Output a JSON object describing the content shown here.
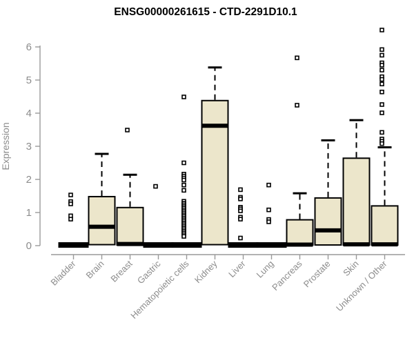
{
  "colors": {
    "background": "#ffffff",
    "box_fill": "#ece6cb",
    "box_stroke": "#000000",
    "median": "#000000",
    "whisker": "#000000",
    "outlier_stroke": "#000000",
    "outlier_fill": "#ffffff",
    "axis": "#999999",
    "tick_label": "#8c8c8c",
    "title": "#000000"
  },
  "chart_data": {
    "type": "boxplot",
    "title": "ENSG00000261615 - CTD-2291D10.1",
    "xlabel": "",
    "ylabel": "Expression",
    "ylim": [
      0,
      6.6
    ],
    "yticks": [
      0,
      1,
      2,
      3,
      4,
      5,
      6
    ],
    "grid": false,
    "legend": "none",
    "categories": [
      "Bladder",
      "Brain",
      "Breast",
      "Gastric",
      "Hematopoietic cells",
      "Kidney",
      "Liver",
      "Lung",
      "Pancreas",
      "Prostate",
      "Skin",
      "Unknown / Other"
    ],
    "series": [
      {
        "name": "Bladder",
        "whisker_low": 0,
        "q1": 0,
        "median": 0.02,
        "q3": 0.04,
        "whisker_high": 0.04,
        "outliers": [
          1.53,
          1.33,
          1.26,
          0.9,
          0.8
        ]
      },
      {
        "name": "Brain",
        "whisker_low": 0.03,
        "q1": 0.03,
        "median": 0.57,
        "q3": 1.48,
        "whisker_high": 2.77,
        "outliers": []
      },
      {
        "name": "Breast",
        "whisker_low": 0.02,
        "q1": 0.02,
        "median": 0.05,
        "q3": 1.15,
        "whisker_high": 2.14,
        "outliers": [
          3.49
        ]
      },
      {
        "name": "Gastric",
        "whisker_low": 0,
        "q1": 0,
        "median": 0.02,
        "q3": 0.04,
        "whisker_high": 0.04,
        "outliers": [
          1.79
        ]
      },
      {
        "name": "Hematopoietic cells",
        "whisker_low": 0,
        "q1": 0,
        "median": 0.02,
        "q3": 0.04,
        "whisker_high": 0.04,
        "outliers": [
          4.49,
          2.5,
          2.16,
          2.1,
          2.04,
          1.98,
          1.83,
          1.67,
          1.34,
          1.28,
          1.23,
          1.18,
          1.13,
          1.08,
          1.03,
          0.98,
          0.93,
          0.88,
          0.83,
          0.78,
          0.73,
          0.68,
          0.63,
          0.58,
          0.53,
          0.48,
          0.43,
          0.38,
          0.33,
          0.28
        ]
      },
      {
        "name": "Kidney",
        "whisker_low": 0.03,
        "q1": 0.03,
        "median": 3.62,
        "q3": 4.38,
        "whisker_high": 5.38,
        "outliers": []
      },
      {
        "name": "Liver",
        "whisker_low": 0,
        "q1": 0,
        "median": 0.02,
        "q3": 0.04,
        "whisker_high": 0.04,
        "outliers": [
          1.69,
          1.46,
          1.41,
          1.16,
          1.11,
          1.05,
          0.86,
          0.8,
          0.23
        ]
      },
      {
        "name": "Lung",
        "whisker_low": 0,
        "q1": 0,
        "median": 0.02,
        "q3": 0.04,
        "whisker_high": 0.04,
        "outliers": [
          1.83,
          1.08,
          0.79,
          0.72
        ]
      },
      {
        "name": "Pancreas",
        "whisker_low": 0.02,
        "q1": 0.02,
        "median": 0.03,
        "q3": 0.78,
        "whisker_high": 1.58,
        "outliers": [
          5.67,
          4.24
        ]
      },
      {
        "name": "Prostate",
        "whisker_low": 0.02,
        "q1": 0.02,
        "median": 0.46,
        "q3": 1.44,
        "whisker_high": 3.18,
        "outliers": []
      },
      {
        "name": "Skin",
        "whisker_low": 0.02,
        "q1": 0.02,
        "median": 0.04,
        "q3": 2.64,
        "whisker_high": 3.79,
        "outliers": []
      },
      {
        "name": "Unknown / Other",
        "whisker_low": 0.02,
        "q1": 0.02,
        "median": 0.04,
        "q3": 1.2,
        "whisker_high": 2.97,
        "outliers": [
          6.51,
          5.92,
          5.75,
          5.52,
          5.45,
          5.3,
          5.1,
          5.02,
          4.88,
          4.64,
          4.26,
          4.01,
          3.42,
          3.22,
          3.15,
          3.08
        ]
      }
    ]
  }
}
